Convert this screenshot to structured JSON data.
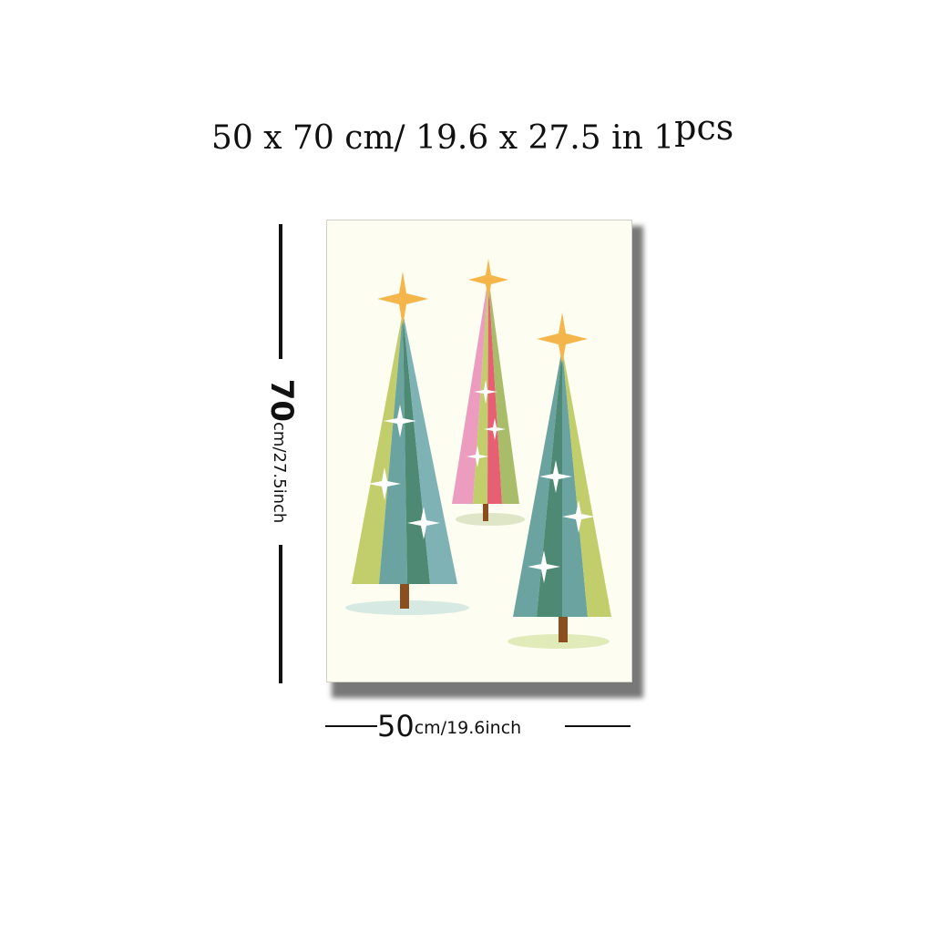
{
  "headline": {
    "size_text": "50 x 70 cm/ 19.6 x 27.5 in",
    "quantity": "1",
    "unit": "pcs"
  },
  "height_dimension": {
    "value": "70",
    "unit_text": "cm/27.5inch"
  },
  "width_dimension": {
    "value": "50",
    "unit_text": "cm/19.6inch"
  },
  "poster": {
    "background": "#fdfdf1",
    "colors": {
      "lime": "#c2cd6c",
      "teal": "#6aa3a0",
      "dark_green": "#4e8a73",
      "pink": "#ec9cbf",
      "coral": "#e65f72",
      "star_gold": "#f4b64a",
      "trunk": "#8b4e1e"
    }
  },
  "icons": [
    "christmas-tree-icon",
    "star-icon",
    "sparkle-icon"
  ]
}
